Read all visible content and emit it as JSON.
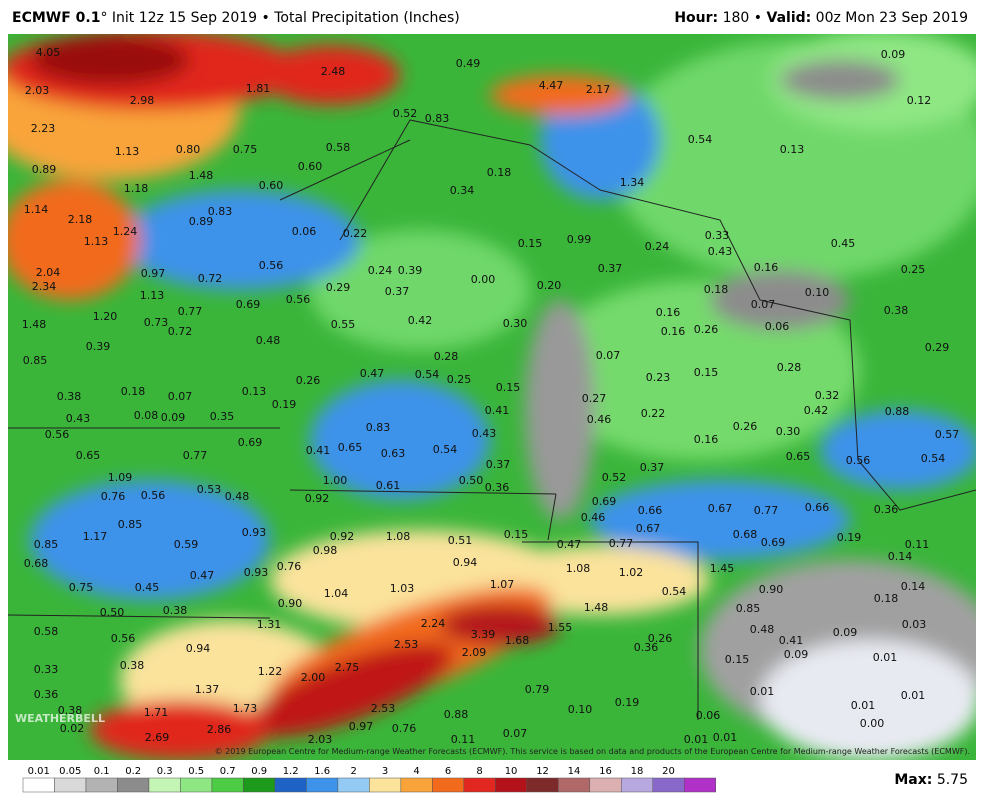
{
  "header": {
    "model": "ECMWF 0.1",
    "title_rest": "° Init 12z 15 Sep 2019 • Total Precipitation (Inches)",
    "hour_key": "Hour:",
    "hour_value": " 180 • ",
    "valid_key": "Valid:",
    "valid_value": " 00z Mon 23 Sep 2019"
  },
  "map": {
    "logo": "WEATHERBELL",
    "copyright": "© 2019 European Centre for Medium-range Weather Forecasts (ECMWF). This service is based on data and products of the European Centre for Medium-range Weather Forecasts (ECMWF).",
    "labels": [
      "4.05",
      "2.48",
      "0.49",
      "4.47",
      "2.17",
      "0.09",
      "2.03",
      "2.98",
      "1.81",
      "0.12",
      "0.52",
      "0.83",
      "2.23",
      "1.13",
      "0.80",
      "0.75",
      "0.58",
      "0.54",
      "0.13",
      "0.89",
      "1.48",
      "0.60",
      "0.18",
      "1.34",
      "1.18",
      "0.60",
      "0.34",
      "1.14",
      "0.83",
      "0.89",
      "2.18",
      "1.13",
      "1.24",
      "0.06",
      "0.22",
      "0.15",
      "0.99",
      "0.24",
      "0.33",
      "0.45",
      "0.43",
      "2.04",
      "0.97",
      "0.56",
      "0.24",
      "0.39",
      "0.16",
      "0.25",
      "2.34",
      "0.72",
      "0.00",
      "0.37",
      "1.13",
      "0.29",
      "0.37",
      "0.20",
      "0.18",
      "0.10",
      "0.69",
      "0.56",
      "0.07",
      "0.38",
      "1.48",
      "1.20",
      "0.73",
      "0.77",
      "0.72",
      "0.55",
      "0.42",
      "0.30",
      "0.16",
      "0.16",
      "0.26",
      "0.06",
      "0.48",
      "0.39",
      "0.29",
      "0.85",
      "0.28",
      "0.07",
      "0.28",
      "0.26",
      "0.47",
      "0.54",
      "0.25",
      "0.23",
      "0.15",
      "0.18",
      "0.38",
      "0.07",
      "0.13",
      "0.15",
      "0.27",
      "0.32",
      "0.19",
      "0.42",
      "0.08",
      "0.09",
      "0.35",
      "0.41",
      "0.46",
      "0.22",
      "0.88",
      "0.43",
      "0.83",
      "0.26",
      "0.30",
      "0.56",
      "0.43",
      "0.16",
      "0.57",
      "0.69",
      "0.41",
      "0.65",
      "0.63",
      "0.54",
      "0.65",
      "0.77",
      "0.65",
      "0.56",
      "0.54",
      "0.37",
      "0.37",
      "1.09",
      "1.00",
      "0.61",
      "0.50",
      "0.36",
      "0.52",
      "0.76",
      "0.56",
      "0.53",
      "0.48",
      "0.92",
      "0.69",
      "0.66",
      "0.67",
      "0.77",
      "0.66",
      "0.36",
      "0.85",
      "0.46",
      "0.67",
      "0.93",
      "0.15",
      "0.51",
      "0.68",
      "0.69",
      "0.19",
      "1.17",
      "0.92",
      "1.08",
      "0.47",
      "0.77",
      "0.11",
      "0.85",
      "0.59",
      "0.98",
      "0.14",
      "0.68",
      "0.94",
      "1.08",
      "0.76",
      "0.93",
      "0.47",
      "1.02",
      "1.45",
      "0.75",
      "0.45",
      "1.07",
      "1.04",
      "1.03",
      "0.90",
      "0.54",
      "0.14",
      "0.90",
      "0.18",
      "0.50",
      "0.38",
      "1.48",
      "0.85",
      "1.31",
      "2.24",
      "1.55",
      "0.48",
      "0.03",
      "0.58",
      "0.56",
      "3.39",
      "0.26",
      "0.41",
      "0.09",
      "2.53",
      "1.68",
      "0.94",
      "0.36",
      "2.09",
      "0.09",
      "0.01",
      "0.33",
      "0.38",
      "1.22",
      "2.75",
      "0.15",
      "2.00",
      "1.37",
      "0.79",
      "0.01",
      "0.01",
      "0.36",
      "1.73",
      "2.53",
      "0.19",
      "0.10",
      "1.71",
      "0.01",
      "0.88",
      "0.06",
      "0.00",
      "0.97",
      "2.86",
      "0.76",
      "2.69",
      "2.03",
      "0.01",
      "0.07",
      "0.11",
      "0.01",
      "0.02",
      "0.38"
    ]
  },
  "colorbar": {
    "ticks": [
      "0.01",
      "0.05",
      "0.1",
      "0.2",
      "0.3",
      "0.5",
      "0.7",
      "0.9",
      "1.2",
      "1.6",
      "2",
      "3",
      "4",
      "6",
      "8",
      "10",
      "12",
      "14",
      "16",
      "18",
      "20"
    ],
    "colors": [
      "#ffffff",
      "#d9d9d9",
      "#b3b3b3",
      "#8c8c8c",
      "#c4f5b4",
      "#8fe784",
      "#4ccb44",
      "#1c9a1c",
      "#1f62c6",
      "#3d92ea",
      "#93cbf4",
      "#fbe39c",
      "#f9a43a",
      "#f26a1c",
      "#e1271f",
      "#b4121a",
      "#7d2a2a",
      "#b06868",
      "#dcb0b0",
      "#b8a8e0",
      "#8868c8",
      "#b030c8"
    ],
    "max_key": "Max:",
    "max_value": " 5.75"
  }
}
